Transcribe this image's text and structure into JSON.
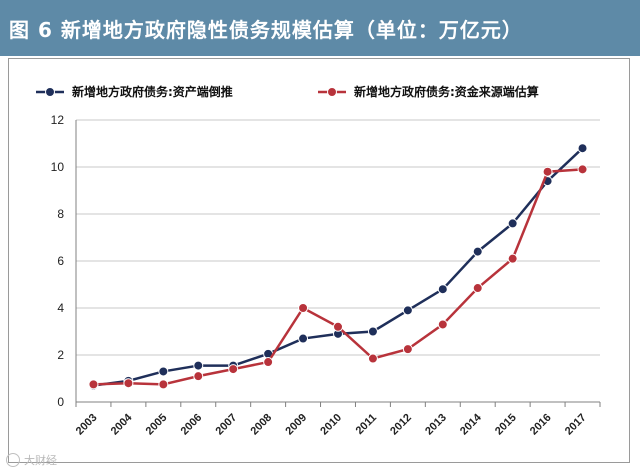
{
  "title": "图 6   新增地方政府隐性债务规模估算（单位：万亿元）",
  "watermark": "大财经",
  "colors": {
    "title_bg": "#5e8aa7",
    "series_1": "#1f2f5a",
    "series_2": "#b8333b",
    "grid": "#c8c8c8",
    "axis": "#808080"
  },
  "chart_data": {
    "type": "line",
    "x": [
      "2003",
      "2004",
      "2005",
      "2006",
      "2007",
      "2008",
      "2009",
      "2010",
      "2011",
      "2012",
      "2013",
      "2014",
      "2015",
      "2016",
      "2017"
    ],
    "series": [
      {
        "name": "新增地方政府债务:资产端倒推",
        "color": "#1f2f5a",
        "values": [
          0.7,
          0.9,
          1.3,
          1.55,
          1.55,
          2.05,
          2.7,
          2.9,
          3.0,
          3.9,
          4.8,
          6.4,
          7.6,
          9.4,
          10.8
        ]
      },
      {
        "name": "新增地方政府债务:资金来源端估算",
        "color": "#b8333b",
        "values": [
          0.75,
          0.8,
          0.75,
          1.1,
          1.4,
          1.7,
          4.0,
          3.2,
          1.85,
          2.25,
          3.3,
          4.85,
          6.1,
          9.8,
          9.9
        ]
      }
    ],
    "yticks": [
      "0",
      "2",
      "4",
      "6",
      "8",
      "10",
      "12"
    ],
    "ylim": [
      0,
      12
    ],
    "grid": "horizontal",
    "legend_position": "top"
  }
}
